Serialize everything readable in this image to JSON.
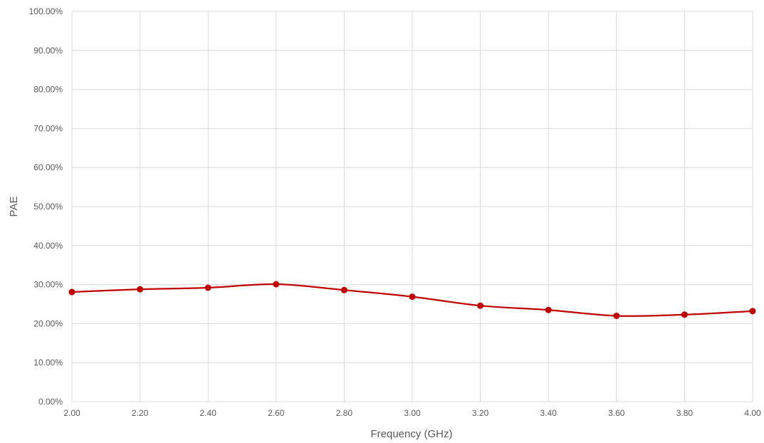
{
  "chart_data": {
    "type": "line",
    "title": "",
    "xlabel": "Frequency (GHz)",
    "ylabel": "PAE",
    "xlim": [
      2.0,
      4.0
    ],
    "ylim": [
      0,
      100
    ],
    "x_ticks": [
      "2.00",
      "2.20",
      "2.40",
      "2.60",
      "2.80",
      "3.00",
      "3.20",
      "3.40",
      "3.60",
      "3.80",
      "4.00"
    ],
    "y_ticks": [
      "0.00%",
      "10.00%",
      "20.00%",
      "30.00%",
      "40.00%",
      "50.00%",
      "60.00%",
      "70.00%",
      "80.00%",
      "90.00%",
      "100.00%"
    ],
    "grid": true,
    "legend": "none",
    "smooth": true,
    "series": [
      {
        "color": "#C00000",
        "x": [
          2.0,
          2.2,
          2.4,
          2.6,
          2.8,
          3.0,
          3.2,
          3.4,
          3.6,
          3.8,
          4.0
        ],
        "y": [
          28.1,
          28.8,
          29.2,
          30.1,
          28.6,
          26.9,
          24.6,
          23.5,
          22.0,
          22.3,
          23.2
        ]
      }
    ],
    "colors": {
      "grid": "#D9D9D9",
      "axis_text": "#595959"
    }
  }
}
